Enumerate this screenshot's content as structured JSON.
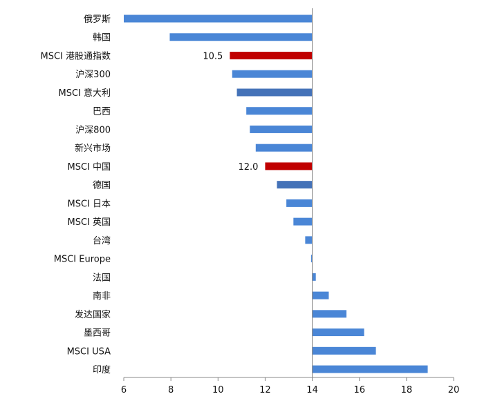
{
  "chart_data": {
    "type": "bar",
    "orientation": "horizontal",
    "title": "",
    "xlabel": "",
    "ylabel": "",
    "xlim": [
      6,
      20
    ],
    "x_ticks": [
      6,
      8,
      10,
      12,
      14,
      16,
      18,
      20
    ],
    "baseline": 14,
    "grid": false,
    "legend": "none",
    "categories": [
      "俄罗斯",
      "韩国",
      "MSCI 港股通指数",
      "沪深300",
      "MSCI 意大利",
      "巴西",
      "沪深800",
      "新兴市场",
      "MSCI 中国",
      "德国",
      "MSCI 日本",
      "MSCI 英国",
      "台湾",
      "MSCI Europe",
      "法国",
      "南非",
      "发达国家",
      "墨西哥",
      "MSCI USA",
      "印度"
    ],
    "values": [
      6.0,
      7.95,
      10.5,
      10.6,
      10.8,
      11.2,
      11.35,
      11.6,
      12.0,
      12.5,
      12.9,
      13.2,
      13.7,
      13.95,
      14.15,
      14.7,
      15.45,
      16.2,
      16.7,
      18.9
    ],
    "colors": [
      "#4a86d6",
      "#4a86d6",
      "#c00000",
      "#4a86d6",
      "#4472b8",
      "#4a86d6",
      "#4a86d6",
      "#4a86d6",
      "#c00000",
      "#4472b8",
      "#4a86d6",
      "#4a86d6",
      "#4a86d6",
      "#4a86d6",
      "#4a86d6",
      "#4a86d6",
      "#4a86d6",
      "#4a86d6",
      "#4a86d6",
      "#4a86d6"
    ],
    "data_labels": [
      {
        "category": "MSCI 港股通指数",
        "text": "10.5"
      },
      {
        "category": "MSCI 中国",
        "text": "12.0"
      }
    ]
  }
}
